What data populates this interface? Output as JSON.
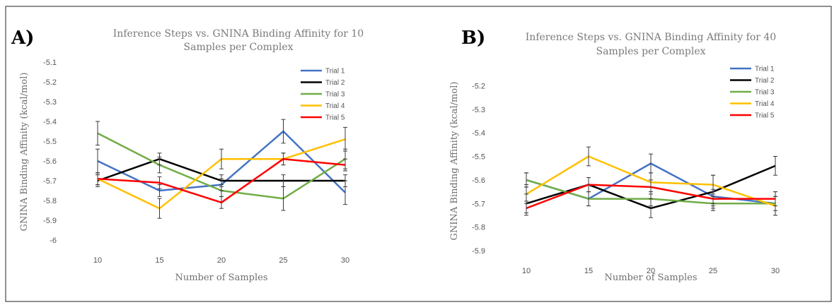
{
  "chart_data": [
    {
      "type": "line",
      "panel": "A)",
      "title": [
        "Inference Steps vs. GNINA Binding Affinity for 10",
        "Samples per Complex"
      ],
      "xlabel": "Number of Samples",
      "ylabel": "GNINA Binding Affinity (kcal/mol)",
      "categories": [
        "10",
        "15",
        "20",
        "25",
        "30"
      ],
      "ylim": [
        -6,
        -5.1
      ],
      "yticks": [
        -5.1,
        -5.2,
        -5.3,
        -5.4,
        -5.5,
        -5.6,
        -5.7,
        -5.8,
        -5.9,
        -6
      ],
      "ytick_labels": [
        "-5.1",
        "-5.2",
        "-5.3",
        "-5.4",
        "-5.5",
        "-5.6",
        "-5.7",
        "-5.8",
        "-5.9",
        "-6"
      ],
      "legend_position": "top-right",
      "series": [
        {
          "name": "Trial 1",
          "color": "#4472C4",
          "values": [
            -5.6,
            -5.75,
            -5.72,
            -5.45,
            -5.76
          ],
          "errors": [
            0.06,
            0.03,
            0.03,
            0.06,
            0.06
          ]
        },
        {
          "name": "Trial 2",
          "color": "#000000",
          "values": [
            -5.7,
            -5.59,
            -5.7,
            -5.7,
            -5.7
          ],
          "errors": [
            0.03,
            0.03,
            0.03,
            0.03,
            0.03
          ]
        },
        {
          "name": "Trial 3",
          "color": "#70AD47",
          "values": [
            -5.46,
            -5.62,
            -5.75,
            -5.79,
            -5.59
          ],
          "errors": [
            0.06,
            0.04,
            0.03,
            0.06,
            0.05
          ]
        },
        {
          "name": "Trial 4",
          "color": "#FFC000",
          "values": [
            -5.69,
            -5.84,
            -5.59,
            -5.59,
            -5.49
          ],
          "errors": [
            0.03,
            0.05,
            0.05,
            0.03,
            0.06
          ]
        },
        {
          "name": "Trial 5",
          "color": "#FF0000",
          "values": [
            -5.69,
            -5.71,
            -5.81,
            -5.59,
            -5.62
          ],
          "errors": [
            0.03,
            0.03,
            0.03,
            0.03,
            0.03
          ]
        }
      ]
    },
    {
      "type": "line",
      "panel": "B)",
      "title": [
        "Inference Steps vs. GNINA Binding Affinity for 40",
        "Samples per Complex"
      ],
      "xlabel": "Number of Samples",
      "ylabel": "GNINA Binding Affinity (kcal/mol)",
      "categories": [
        "10",
        "15",
        "20",
        "25",
        "30"
      ],
      "ylim": [
        -5.9,
        -5.1
      ],
      "yticks": [
        -5.2,
        -5.3,
        -5.4,
        -5.5,
        -5.6,
        -5.7,
        -5.8,
        -5.9
      ],
      "ytick_labels": [
        "-5.2",
        "-5.3",
        "-5.4",
        "-5.5",
        "-5.6",
        "-5.7",
        "-5.8",
        "-5.9"
      ],
      "legend_position": "top-right",
      "series": [
        {
          "name": "Trial 1",
          "color": "#4472C4",
          "values": [
            -5.6,
            -5.68,
            -5.53,
            -5.67,
            -5.7
          ],
          "errors": [
            0.03,
            0.03,
            0.04,
            0.03,
            0.03
          ]
        },
        {
          "name": "Trial 2",
          "color": "#000000",
          "values": [
            -5.7,
            -5.62,
            -5.72,
            -5.65,
            -5.54
          ],
          "errors": [
            0.04,
            0.03,
            0.04,
            0.07,
            0.04
          ]
        },
        {
          "name": "Trial 3",
          "color": "#70AD47",
          "values": [
            -5.6,
            -5.68,
            -5.68,
            -5.7,
            -5.7
          ],
          "errors": [
            0.03,
            0.03,
            0.03,
            0.03,
            0.05
          ]
        },
        {
          "name": "Trial 4",
          "color": "#FFC000",
          "values": [
            -5.66,
            -5.5,
            -5.61,
            -5.62,
            -5.71
          ],
          "errors": [
            0.04,
            0.04,
            0.04,
            0.04,
            0.04
          ]
        },
        {
          "name": "Trial 5",
          "color": "#FF0000",
          "values": [
            -5.72,
            -5.62,
            -5.63,
            -5.68,
            -5.68
          ],
          "errors": [
            0.03,
            0.03,
            0.03,
            0.03,
            0.03
          ]
        }
      ]
    }
  ]
}
